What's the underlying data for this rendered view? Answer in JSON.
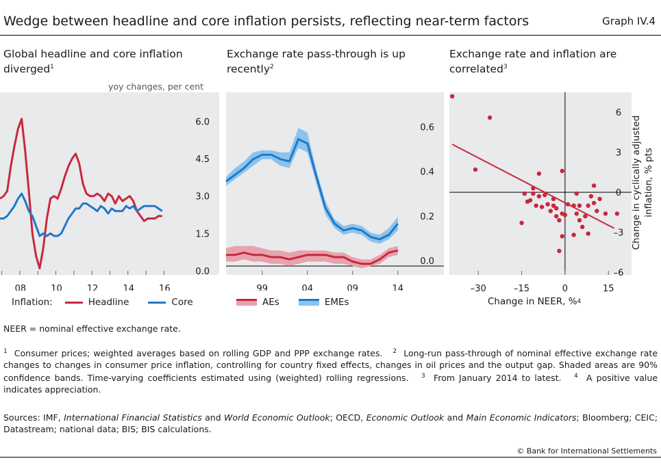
{
  "header": {
    "title": "Wedge between headline and core inflation persists, reflecting near-term factors",
    "graph_id": "Graph IV.4"
  },
  "panels": [
    {
      "title": "Global headline and core inflation diverged",
      "title_line1": "Global headline and core inflation",
      "title_line2": "diverged",
      "sup": "1",
      "unit": "yoy changes, per cent",
      "legend": {
        "prefix": "Inflation:",
        "items": [
          "Headline",
          "Core"
        ]
      }
    },
    {
      "title": "Exchange rate pass-through is up recently",
      "title_line1": "Exchange rate pass-through is up",
      "title_line2": "recently",
      "sup": "2",
      "legend": {
        "items": [
          "AEs",
          "EMEs"
        ]
      }
    },
    {
      "title": "Exchange rate and inflation are correlated",
      "title_line1": "Exchange rate and inflation are",
      "title_line2": "correlated",
      "sup": "3",
      "xlabel": "Change in NEER, %",
      "xlabel_sup": "4",
      "ylabel": "Change in cyclically adjusted inflation, % pts",
      "ylabel_line1": "Change in cyclically adjusted",
      "ylabel_line2": "inflation, % pts"
    }
  ],
  "notes": {
    "abbrev": "NEER = nominal effective exchange rate.",
    "footnotes": [
      {
        "n": "1",
        "text": "Consumer prices; weighted averages based on rolling GDP and PPP exchange rates."
      },
      {
        "n": "2",
        "text": "Long-run pass-through of nominal effective exchange rate changes to changes in consumer price inflation, controlling for country fixed effects, changes in oil prices and the output gap. Shaded areas are 90% confidence bands. Time-varying coefficients estimated using (weighted) rolling regressions."
      },
      {
        "n": "3",
        "text": "From January 2014 to latest."
      },
      {
        "n": "4",
        "text": "A positive value indicates appreciation."
      }
    ],
    "sources_prefix": "Sources: IMF, ",
    "s_ifs": "International Financial Statistics",
    "s_and": " and ",
    "s_weo": "World Economic Outlook",
    "s_oecd": "; OECD, ",
    "s_eo": "Economic Outlook",
    "s_and2": " and ",
    "s_mei": "Main Economic Indicators",
    "s_rest": "; Bloomberg; CEIC; Datastream; national data; BIS; BIS calculations.",
    "copyright": "© Bank for International Settlements"
  },
  "colors": {
    "headline": "#c8283c",
    "core": "#1f78c8",
    "ae_band": "#e7a3ad",
    "eme_band": "#8cc3ec",
    "panel_bg": "#e9eaec",
    "scatter": "#c8283c"
  },
  "chart_data": [
    {
      "type": "line",
      "x_ticks": [
        "08",
        "10",
        "12",
        "14",
        "16"
      ],
      "y_ticks": [
        "0.0",
        "1.5",
        "3.0",
        "4.5",
        "6.0"
      ],
      "ylim": [
        0,
        7.0
      ],
      "xlim": [
        2006.9,
        2016.9
      ],
      "series": [
        {
          "name": "Headline",
          "points": [
            [
              2006.9,
              2.9
            ],
            [
              2007.1,
              3.0
            ],
            [
              2007.3,
              3.2
            ],
            [
              2007.5,
              4.2
            ],
            [
              2007.7,
              5.0
            ],
            [
              2007.9,
              5.7
            ],
            [
              2008.1,
              6.1
            ],
            [
              2008.3,
              4.8
            ],
            [
              2008.5,
              3.2
            ],
            [
              2008.7,
              1.5
            ],
            [
              2008.9,
              0.6
            ],
            [
              2009.1,
              0.1
            ],
            [
              2009.3,
              0.9
            ],
            [
              2009.5,
              2.1
            ],
            [
              2009.7,
              2.9
            ],
            [
              2009.9,
              3.0
            ],
            [
              2010.1,
              2.9
            ],
            [
              2010.3,
              3.3
            ],
            [
              2010.5,
              3.8
            ],
            [
              2010.7,
              4.2
            ],
            [
              2010.9,
              4.5
            ],
            [
              2011.1,
              4.7
            ],
            [
              2011.3,
              4.3
            ],
            [
              2011.5,
              3.5
            ],
            [
              2011.7,
              3.1
            ],
            [
              2011.9,
              3.0
            ],
            [
              2012.1,
              3.0
            ],
            [
              2012.3,
              3.1
            ],
            [
              2012.5,
              3.0
            ],
            [
              2012.7,
              2.8
            ],
            [
              2012.9,
              3.1
            ],
            [
              2013.1,
              3.0
            ],
            [
              2013.3,
              2.7
            ],
            [
              2013.5,
              3.0
            ],
            [
              2013.7,
              2.8
            ],
            [
              2013.9,
              2.9
            ],
            [
              2014.1,
              3.0
            ],
            [
              2014.3,
              2.8
            ],
            [
              2014.5,
              2.4
            ],
            [
              2014.7,
              2.2
            ],
            [
              2014.9,
              2.0
            ],
            [
              2015.1,
              2.1
            ],
            [
              2015.3,
              2.1
            ],
            [
              2015.5,
              2.1
            ],
            [
              2015.7,
              2.2
            ],
            [
              2015.9,
              2.2
            ]
          ]
        },
        {
          "name": "Core",
          "points": [
            [
              2006.9,
              2.1
            ],
            [
              2007.1,
              2.1
            ],
            [
              2007.3,
              2.2
            ],
            [
              2007.5,
              2.4
            ],
            [
              2007.7,
              2.6
            ],
            [
              2007.9,
              2.9
            ],
            [
              2008.1,
              3.1
            ],
            [
              2008.3,
              2.8
            ],
            [
              2008.5,
              2.4
            ],
            [
              2008.7,
              2.2
            ],
            [
              2008.9,
              1.8
            ],
            [
              2009.1,
              1.4
            ],
            [
              2009.3,
              1.5
            ],
            [
              2009.5,
              1.4
            ],
            [
              2009.7,
              1.5
            ],
            [
              2009.9,
              1.4
            ],
            [
              2010.1,
              1.4
            ],
            [
              2010.3,
              1.5
            ],
            [
              2010.5,
              1.8
            ],
            [
              2010.7,
              2.1
            ],
            [
              2010.9,
              2.3
            ],
            [
              2011.1,
              2.5
            ],
            [
              2011.3,
              2.5
            ],
            [
              2011.5,
              2.7
            ],
            [
              2011.7,
              2.7
            ],
            [
              2011.9,
              2.6
            ],
            [
              2012.1,
              2.5
            ],
            [
              2012.3,
              2.4
            ],
            [
              2012.5,
              2.6
            ],
            [
              2012.7,
              2.5
            ],
            [
              2012.9,
              2.3
            ],
            [
              2013.1,
              2.5
            ],
            [
              2013.3,
              2.4
            ],
            [
              2013.5,
              2.4
            ],
            [
              2013.7,
              2.4
            ],
            [
              2013.9,
              2.6
            ],
            [
              2014.1,
              2.5
            ],
            [
              2014.3,
              2.6
            ],
            [
              2014.5,
              2.4
            ],
            [
              2014.7,
              2.5
            ],
            [
              2014.9,
              2.6
            ],
            [
              2015.1,
              2.6
            ],
            [
              2015.3,
              2.6
            ],
            [
              2015.5,
              2.6
            ],
            [
              2015.7,
              2.5
            ],
            [
              2015.9,
              2.4
            ]
          ]
        }
      ]
    },
    {
      "type": "area",
      "x_ticks": [
        "99",
        "04",
        "09",
        "14"
      ],
      "y_ticks": [
        "0.0",
        "0.2",
        "0.4",
        "0.6"
      ],
      "ylim": [
        -0.04,
        0.78
      ],
      "xlim": [
        1995.0,
        2015.0
      ],
      "series": [
        {
          "name": "AEs",
          "x": [
            1995,
            1996,
            1997,
            1998,
            1999,
            2000,
            2001,
            2002,
            2003,
            2004,
            2005,
            2006,
            2007,
            2008,
            2009,
            2010,
            2011,
            2012,
            2013,
            2014
          ],
          "mid": [
            0.05,
            0.05,
            0.06,
            0.05,
            0.05,
            0.04,
            0.04,
            0.03,
            0.04,
            0.05,
            0.05,
            0.05,
            0.04,
            0.04,
            0.02,
            0.01,
            0.01,
            0.03,
            0.06,
            0.07
          ],
          "lower": [
            0.02,
            0.02,
            0.03,
            0.02,
            0.02,
            0.01,
            0.01,
            0.0,
            0.01,
            0.02,
            0.02,
            0.02,
            0.01,
            0.01,
            0.0,
            -0.01,
            0.0,
            0.01,
            0.04,
            0.05
          ],
          "upper": [
            0.08,
            0.09,
            0.09,
            0.09,
            0.08,
            0.07,
            0.07,
            0.06,
            0.07,
            0.07,
            0.07,
            0.07,
            0.06,
            0.06,
            0.04,
            0.03,
            0.03,
            0.05,
            0.08,
            0.09
          ]
        },
        {
          "name": "EMEs",
          "x": [
            1995,
            1996,
            1997,
            1998,
            1999,
            2000,
            2001,
            2002,
            2003,
            2004,
            2005,
            2006,
            2007,
            2008,
            2009,
            2010,
            2011,
            2012,
            2013,
            2014
          ],
          "mid": [
            0.38,
            0.41,
            0.44,
            0.48,
            0.5,
            0.5,
            0.48,
            0.47,
            0.57,
            0.55,
            0.4,
            0.26,
            0.19,
            0.16,
            0.17,
            0.16,
            0.13,
            0.12,
            0.14,
            0.19
          ],
          "lower": [
            0.36,
            0.39,
            0.42,
            0.45,
            0.48,
            0.48,
            0.45,
            0.44,
            0.53,
            0.51,
            0.37,
            0.23,
            0.17,
            0.14,
            0.15,
            0.14,
            0.11,
            0.1,
            0.12,
            0.16
          ],
          "upper": [
            0.4,
            0.44,
            0.47,
            0.51,
            0.52,
            0.52,
            0.51,
            0.51,
            0.62,
            0.6,
            0.43,
            0.29,
            0.21,
            0.18,
            0.19,
            0.18,
            0.15,
            0.14,
            0.17,
            0.22
          ]
        }
      ]
    },
    {
      "type": "scatter",
      "x_ticks": [
        "–30",
        "–15",
        "0",
        "15"
      ],
      "y_ticks": [
        "–6",
        "–3",
        "0",
        "3",
        "6"
      ],
      "xlim": [
        -40,
        23
      ],
      "ylim": [
        -6.2,
        7.5
      ],
      "points": [
        [
          -39,
          7.2
        ],
        [
          -26,
          5.6
        ],
        [
          -31,
          1.7
        ],
        [
          -15,
          -2.3
        ],
        [
          -13,
          -0.7
        ],
        [
          -11,
          -0.1
        ],
        [
          -9,
          1.4
        ],
        [
          -8,
          -1.1
        ],
        [
          -10,
          -1.0
        ],
        [
          -6,
          -0.9
        ],
        [
          -5,
          -1.4
        ],
        [
          -4,
          -1.0
        ],
        [
          -3,
          -1.2
        ],
        [
          -2,
          -2.1
        ],
        [
          -1,
          -1.6
        ],
        [
          0,
          -1.7
        ],
        [
          1,
          -0.9
        ],
        [
          3,
          -1.0
        ],
        [
          4,
          -1.6
        ],
        [
          5,
          -2.1
        ],
        [
          6,
          -2.6
        ],
        [
          7,
          -1.8
        ],
        [
          9,
          -0.3
        ],
        [
          10,
          -0.8
        ],
        [
          12,
          -0.5
        ],
        [
          14,
          -1.6
        ],
        [
          -1,
          1.6
        ],
        [
          -14,
          -0.1
        ],
        [
          4,
          -0.1
        ],
        [
          8,
          -1.0
        ],
        [
          10,
          0.5
        ],
        [
          -12,
          -0.6
        ],
        [
          -4,
          -0.5
        ],
        [
          -7,
          -0.2
        ],
        [
          -9,
          -0.3
        ],
        [
          3,
          -3.2
        ],
        [
          5,
          -1.0
        ],
        [
          18,
          -1.6
        ],
        [
          11,
          -1.4
        ],
        [
          -1,
          -3.3
        ],
        [
          -2,
          -4.4
        ],
        [
          8,
          -3.1
        ],
        [
          -11,
          0.3
        ],
        [
          -3,
          -1.8
        ]
      ],
      "fit": {
        "x": [
          -39,
          17
        ],
        "y": [
          3.6,
          -2.7
        ]
      }
    }
  ]
}
